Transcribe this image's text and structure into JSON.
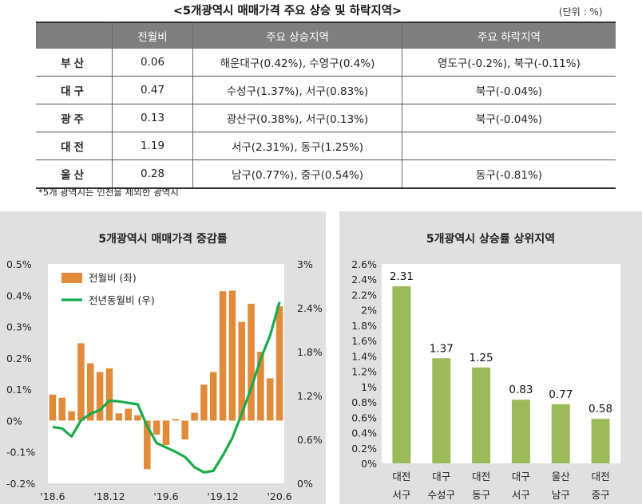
{
  "table": {
    "title": "<5개광역시 매매가격 주요 상승 및 하락지역>",
    "unit": "(단위 : %)",
    "headers": [
      "",
      "전월비",
      "주요 상승지역",
      "주요 하락지역"
    ],
    "rows": [
      {
        "region": "부산",
        "mom": "0.06",
        "rise": "해운대구(0.42%), 수영구(0.4%)",
        "fall": "영도구(-0.2%), 북구(-0.11%)"
      },
      {
        "region": "대구",
        "mom": "0.47",
        "rise": "수성구(1.37%), 서구(0.83%)",
        "fall": "북구(-0.04%)"
      },
      {
        "region": "광주",
        "mom": "0.13",
        "rise": "광산구(0.38%), 서구(0.13%)",
        "fall": "북구(-0.04%)"
      },
      {
        "region": "대전",
        "mom": "1.19",
        "rise": "서구(2.31%), 동구(1.25%)",
        "fall": ""
      },
      {
        "region": "울산",
        "mom": "0.28",
        "rise": "남구(0.77%), 중구(0.54%)",
        "fall": "동구(-0.81%)"
      }
    ],
    "footnote": "*5개 광역시는 인천을 제외한 광역시"
  },
  "chart_data": [
    {
      "type": "bar+line",
      "title": "5개광역시 매매가격 증감률",
      "x_tick_labels": [
        "'18.6",
        "'18.12",
        "'19.6",
        "'19.12",
        "'20.6"
      ],
      "y_left_ticks": [
        "0.5%",
        "0.4%",
        "0.3%",
        "0.2%",
        "0.1%",
        "0%",
        "-0.1%",
        "-0.2%"
      ],
      "y_right_ticks": [
        "3%",
        "2.4%",
        "1.8%",
        "1.2%",
        "0.6%",
        "0%"
      ],
      "ylim_left": [
        -0.2,
        0.5
      ],
      "ylim_right": [
        0,
        3
      ],
      "series": [
        {
          "name": "전월비 (좌)",
          "axis": "left",
          "type": "bar",
          "color": "#e08a3a",
          "values": [
            0.083,
            0.073,
            0.03,
            0.247,
            0.183,
            0.155,
            0.167,
            0.023,
            0.038,
            0.017,
            -0.155,
            -0.045,
            -0.078,
            0.005,
            -0.06,
            0.025,
            0.115,
            0.155,
            0.413,
            0.415,
            0.315,
            0.373,
            0.22,
            0.135,
            0.365
          ]
        },
        {
          "name": "전년동월비 (우)",
          "axis": "right",
          "type": "line",
          "color": "#1aaa4a",
          "values": [
            0.77,
            0.75,
            0.64,
            0.86,
            0.95,
            1.0,
            1.13,
            1.12,
            1.1,
            1.08,
            0.78,
            0.55,
            0.49,
            0.43,
            0.36,
            0.22,
            0.15,
            0.17,
            0.38,
            0.62,
            0.95,
            1.3,
            1.7,
            2.02,
            2.48
          ]
        }
      ],
      "legend": "top-left"
    },
    {
      "type": "bar",
      "title": "5개광역시 상승률 상위지역",
      "categories": [
        [
          "대전",
          "서구"
        ],
        [
          "대구",
          "수성구"
        ],
        [
          "대전",
          "동구"
        ],
        [
          "대구",
          "서구"
        ],
        [
          "울산",
          "남구"
        ],
        [
          "대전",
          "중구"
        ]
      ],
      "values": [
        2.31,
        1.37,
        1.25,
        0.83,
        0.77,
        0.58
      ],
      "value_labels": [
        "2.31",
        "1.37",
        "1.25",
        "0.83",
        "0.77",
        "0.58"
      ],
      "y_ticks": [
        "2.6%",
        "2.4%",
        "2.2%",
        "2%",
        "1.8%",
        "1.6%",
        "1.4%",
        "1.2%",
        "1%",
        "0.8%",
        "0.6%",
        "0.4%",
        "0.2%",
        "0%"
      ],
      "ylim": [
        0,
        2.6
      ],
      "color": "#9bbb59"
    }
  ]
}
